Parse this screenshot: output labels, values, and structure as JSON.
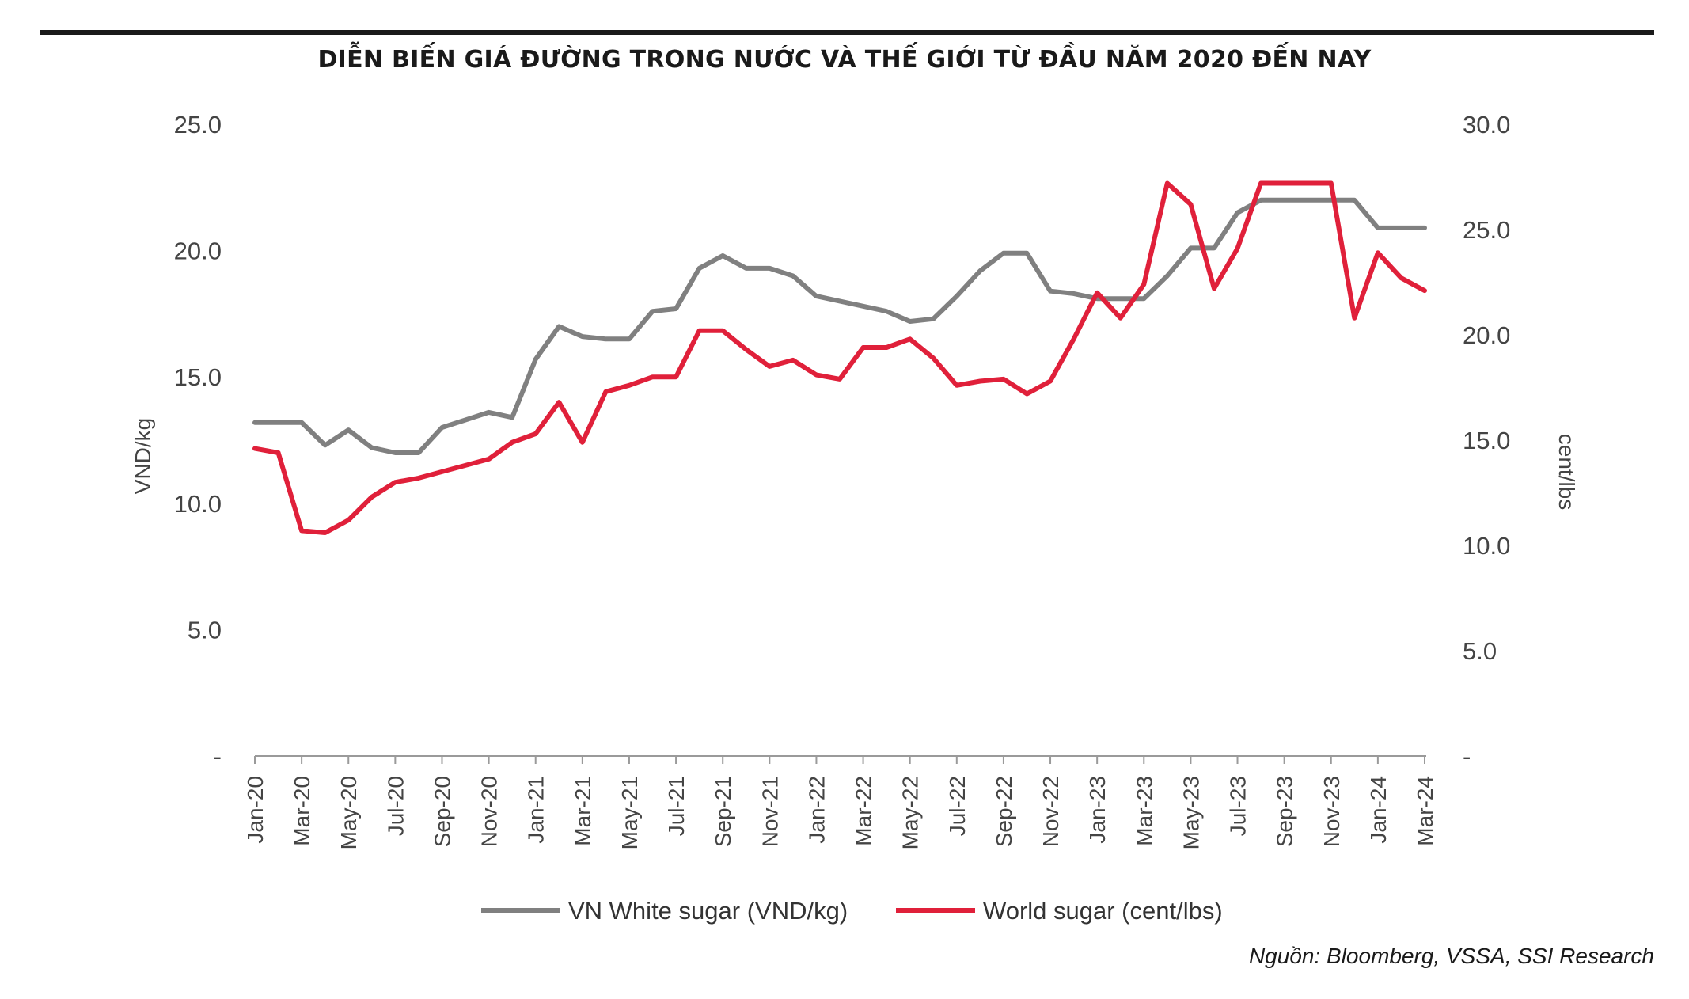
{
  "title": "DIỄN BIẾN GIÁ ĐƯỜNG TRONG NƯỚC VÀ THẾ GIỚI TỪ ĐẦU NĂM 2020 ĐẾN NAY",
  "source": "Nguồn: Bloomberg, VSSA, SSI Research",
  "chart_data": {
    "type": "line",
    "title": "DIỄN BIẾN GIÁ ĐƯỜNG TRONG NƯỚC VÀ THẾ GIỚI TỪ ĐẦU NĂM 2020 ĐẾN NAY",
    "ylabel_left": "VND/kg",
    "ylabel_right": "cent/lbs",
    "ylim_left": [
      0,
      25
    ],
    "ylim_right": [
      0,
      30
    ],
    "yticks_left": [
      "-",
      "5.0",
      "10.0",
      "15.0",
      "20.0",
      "25.0"
    ],
    "yticks_right": [
      "-",
      "5.0",
      "10.0",
      "15.0",
      "20.0",
      "25.0",
      "30.0"
    ],
    "x_tick_labels": [
      "Jan-20",
      "Mar-20",
      "May-20",
      "Jul-20",
      "Sep-20",
      "Nov-20",
      "Jan-21",
      "Mar-21",
      "May-21",
      "Jul-21",
      "Sep-21",
      "Nov-21",
      "Jan-22",
      "Mar-22",
      "May-22",
      "Jul-22",
      "Sep-22",
      "Nov-22",
      "Jan-23",
      "Mar-23",
      "May-23",
      "Jul-23",
      "Sep-23",
      "Nov-23",
      "Jan-24",
      "Mar-24"
    ],
    "x": [
      "Jan-20",
      "Feb-20",
      "Mar-20",
      "Apr-20",
      "May-20",
      "Jun-20",
      "Jul-20",
      "Aug-20",
      "Sep-20",
      "Oct-20",
      "Nov-20",
      "Dec-20",
      "Jan-21",
      "Feb-21",
      "Mar-21",
      "Apr-21",
      "May-21",
      "Jun-21",
      "Jul-21",
      "Aug-21",
      "Sep-21",
      "Oct-21",
      "Nov-21",
      "Dec-21",
      "Jan-22",
      "Feb-22",
      "Mar-22",
      "Apr-22",
      "May-22",
      "Jun-22",
      "Jul-22",
      "Aug-22",
      "Sep-22",
      "Oct-22",
      "Nov-22",
      "Dec-22",
      "Jan-23",
      "Feb-23",
      "Mar-23",
      "Apr-23",
      "May-23",
      "Jun-23",
      "Jul-23",
      "Aug-23",
      "Sep-23",
      "Oct-23",
      "Nov-23",
      "Dec-23",
      "Jan-24",
      "Feb-24",
      "Mar-24"
    ],
    "legend_position": "bottom",
    "series": [
      {
        "name": "VN White sugar (VND/kg)",
        "axis": "left",
        "color": "#808080",
        "values": [
          13.2,
          13.2,
          13.2,
          12.3,
          12.9,
          12.2,
          12.0,
          12.0,
          13.0,
          13.3,
          13.6,
          13.4,
          15.7,
          17.0,
          16.6,
          16.5,
          16.5,
          17.6,
          17.7,
          19.3,
          19.8,
          19.3,
          19.3,
          19.0,
          18.2,
          18.0,
          17.8,
          17.6,
          17.2,
          17.3,
          18.2,
          19.2,
          19.9,
          19.9,
          18.4,
          18.3,
          18.1,
          18.1,
          18.1,
          19.0,
          20.1,
          20.1,
          21.5,
          22.0,
          22.0,
          22.0,
          22.0,
          22.0,
          20.9,
          20.9,
          20.9
        ]
      },
      {
        "name": "World sugar (cent/lbs)",
        "axis": "right",
        "color": "#e0203a",
        "values": [
          14.6,
          14.4,
          10.7,
          10.6,
          11.2,
          12.3,
          13.0,
          13.2,
          13.5,
          13.8,
          14.1,
          14.9,
          15.3,
          16.8,
          14.9,
          17.3,
          17.6,
          18.0,
          18.0,
          20.2,
          20.2,
          19.3,
          18.5,
          18.8,
          18.1,
          17.9,
          19.4,
          19.4,
          19.8,
          18.9,
          17.6,
          17.8,
          17.9,
          17.2,
          17.8,
          19.8,
          22.0,
          20.8,
          22.4,
          27.2,
          26.2,
          22.2,
          24.1,
          27.2,
          27.2,
          27.2,
          27.2,
          20.8,
          23.9,
          22.7,
          22.1
        ]
      }
    ]
  }
}
